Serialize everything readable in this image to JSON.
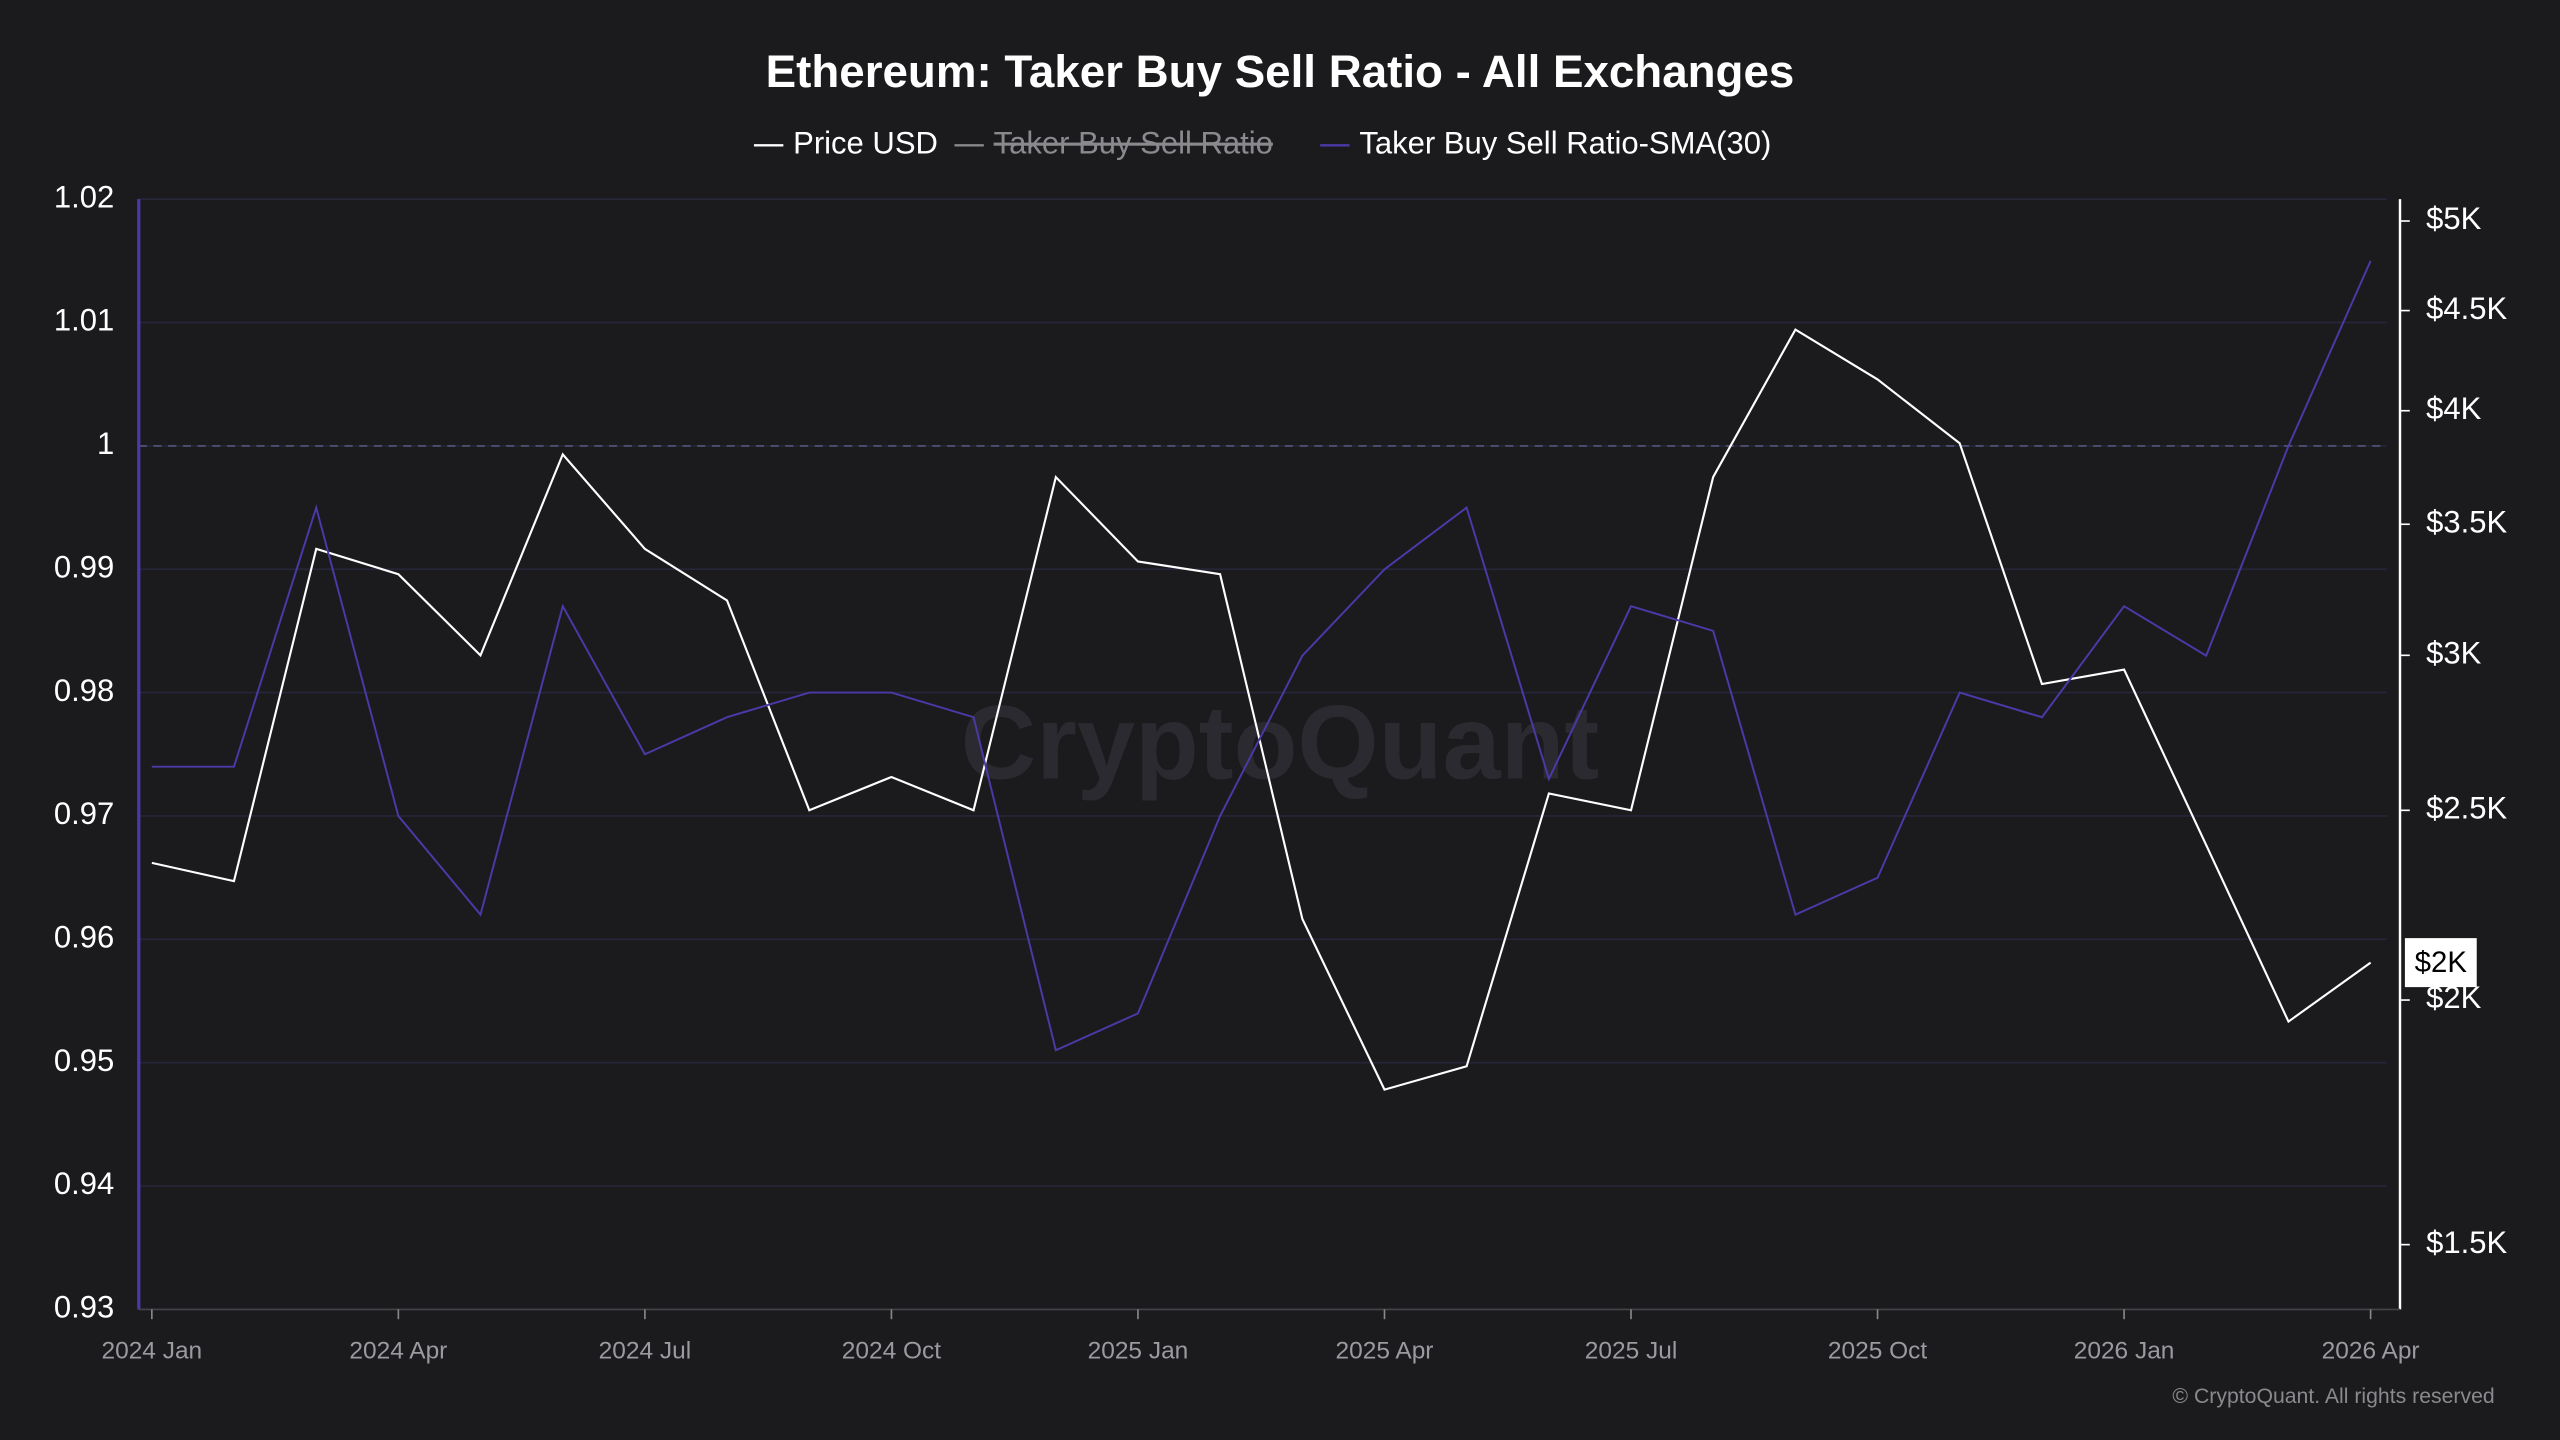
{
  "chart_data": {
    "type": "line",
    "title": "Ethereum: Taker Buy Sell Ratio - All Exchanges",
    "watermark": "CryptoQuant",
    "copyright": "© CryptoQuant. All rights reserved",
    "x": [
      "2024-01",
      "2024-02",
      "2024-03",
      "2024-04",
      "2024-05",
      "2024-06",
      "2024-07",
      "2024-08",
      "2024-09",
      "2024-10",
      "2024-11",
      "2024-12",
      "2025-01",
      "2025-02",
      "2025-03",
      "2025-04",
      "2025-05",
      "2025-06",
      "2025-07",
      "2025-08",
      "2025-09",
      "2025-10",
      "2025-11",
      "2025-12",
      "2026-01",
      "2026-02",
      "2026-03",
      "2026-04"
    ],
    "xlim": [
      "2024-01",
      "2026-04"
    ],
    "xticks": [
      {
        "value": "2024-01",
        "label": "2024 Jan"
      },
      {
        "value": "2024-04",
        "label": "2024 Apr"
      },
      {
        "value": "2024-07",
        "label": "2024 Jul"
      },
      {
        "value": "2024-10",
        "label": "2024 Oct"
      },
      {
        "value": "2025-01",
        "label": "2025 Jan"
      },
      {
        "value": "2025-04",
        "label": "2025 Apr"
      },
      {
        "value": "2025-07",
        "label": "2025 Jul"
      },
      {
        "value": "2025-10",
        "label": "2025 Oct"
      },
      {
        "value": "2026-01",
        "label": "2026 Jan"
      },
      {
        "value": "2026-04",
        "label": "2026 Apr"
      }
    ],
    "ylim": [
      0.93,
      1.02
    ],
    "yticks": [
      0.93,
      0.94,
      0.95,
      0.96,
      0.97,
      0.98,
      0.99,
      1,
      1.01,
      1.02
    ],
    "y2lim": [
      1390,
      5130
    ],
    "y2_log": true,
    "y2ticks": [
      {
        "value": 1500,
        "label": "$1.5K"
      },
      {
        "value": 2000,
        "label": "$2K"
      },
      {
        "value": 2500,
        "label": "$2.5K"
      },
      {
        "value": 3000,
        "label": "$3K"
      },
      {
        "value": 3500,
        "label": "$3.5K"
      },
      {
        "value": 4000,
        "label": "$4K"
      },
      {
        "value": 4500,
        "label": "$4.5K"
      },
      {
        "value": 5000,
        "label": "$5K"
      }
    ],
    "reference_line": 1,
    "grid": true,
    "series": [
      {
        "name": "Price USD",
        "color": "#ffffff",
        "axis": "y2",
        "last_value_label": "$2K",
        "values": [
          2350,
          2300,
          3400,
          3300,
          3000,
          3800,
          3400,
          3200,
          2500,
          2600,
          2500,
          3700,
          3350,
          3300,
          2200,
          1800,
          1850,
          2550,
          2500,
          3700,
          4400,
          4150,
          3850,
          2900,
          2950,
          2400,
          1950,
          2090
        ]
      },
      {
        "name": "Taker Buy Sell Ratio",
        "color": "#888888",
        "hidden": true
      },
      {
        "name": "Taker Buy Sell Ratio-SMA(30)",
        "color": "#4a3aa8",
        "values": [
          0.974,
          0.974,
          0.995,
          0.97,
          0.962,
          0.987,
          0.975,
          0.978,
          0.98,
          0.98,
          0.978,
          0.951,
          0.954,
          0.97,
          0.983,
          0.99,
          0.995,
          0.973,
          0.987,
          0.985,
          0.962,
          0.965,
          0.98,
          0.978,
          0.987,
          0.983,
          1,
          1.015
        ]
      }
    ]
  }
}
